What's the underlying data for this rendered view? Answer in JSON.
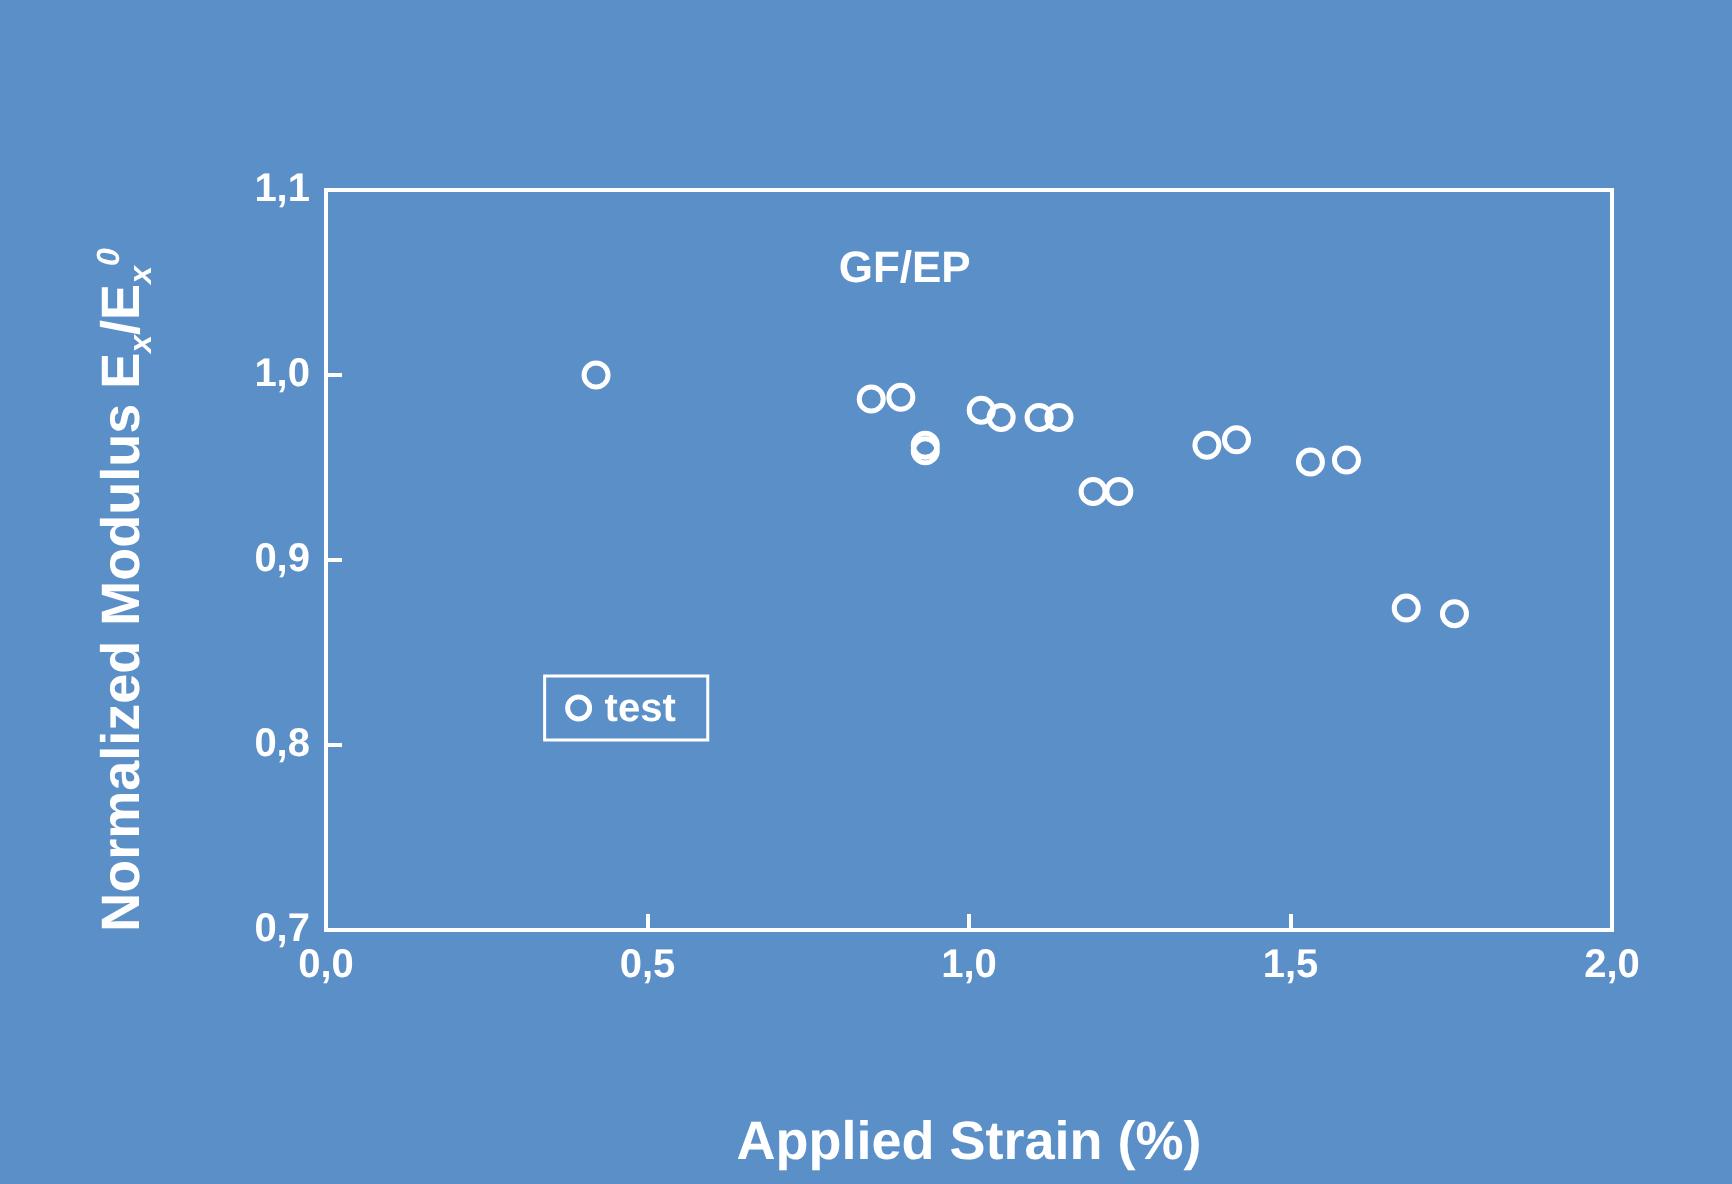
{
  "chart_data": {
    "type": "scatter",
    "title": "GF/EP",
    "xlabel": "Applied Strain (%)",
    "ylabel": "Normalized Modulus  E$_{x}$/E$_{x}$$^{0}$",
    "x": [
      0.42,
      0.848,
      0.894,
      0.932,
      0.932,
      1.019,
      1.05,
      1.109,
      1.14,
      1.193,
      1.233,
      1.37,
      1.416,
      1.531,
      1.587,
      1.68,
      1.755
    ],
    "series": [
      {
        "name": "test",
        "color": "#ffffff",
        "values": [
          1.0,
          0.987,
          0.988,
          0.962,
          0.959,
          0.981,
          0.977,
          0.977,
          0.977,
          0.937,
          0.937,
          0.962,
          0.965,
          0.953,
          0.954,
          0.874,
          0.871
        ]
      }
    ],
    "xlim": [
      0,
      2
    ],
    "xticks": [
      {
        "value": 0,
        "label": "0,0"
      },
      {
        "value": 0.5,
        "label": "0,5"
      },
      {
        "value": 1,
        "label": "1,0"
      },
      {
        "value": 1.5,
        "label": "1,5"
      },
      {
        "value": 2,
        "label": "2,0"
      }
    ],
    "ylim": [
      0.7,
      1.1
    ],
    "yticks": [
      {
        "value": 0.7,
        "label": "0,7"
      },
      {
        "value": 0.8,
        "label": "0,8"
      },
      {
        "value": 0.9,
        "label": "0,9"
      },
      {
        "value": 1.0,
        "label": "1,0"
      },
      {
        "value": 1.1,
        "label": "1,1"
      }
    ],
    "grid": false,
    "legend": "left",
    "marker": "circle"
  }
}
